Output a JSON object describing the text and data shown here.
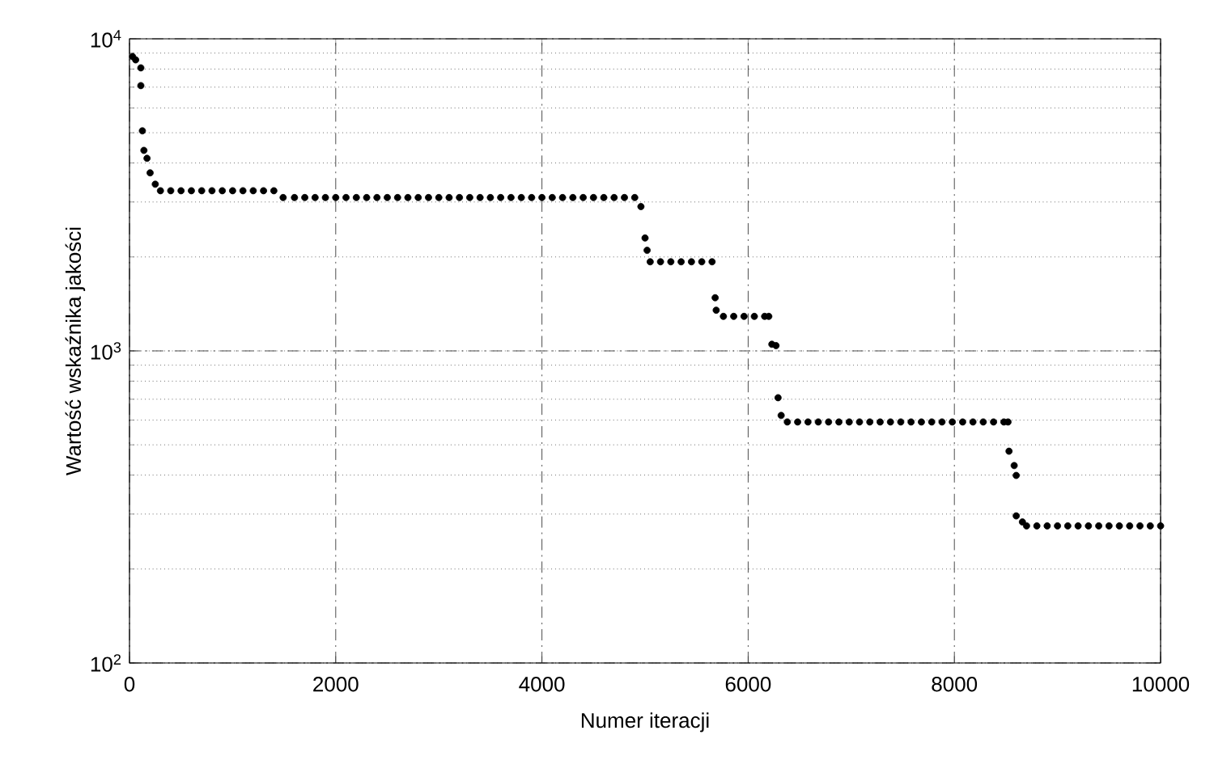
{
  "chart_data": {
    "type": "scatter",
    "xlabel": "Numer iteracji",
    "ylabel": "Wartość wskaźnika jakości",
    "log": "y",
    "grid": true,
    "marker": "circle",
    "color": "#000000",
    "xlim": [
      0,
      10000
    ],
    "ylim": [
      100,
      10000
    ],
    "xticks": [
      0,
      2000,
      4000,
      6000,
      8000,
      10000
    ],
    "yticks": [
      {
        "value": 100,
        "label": "10$^{2}$"
      },
      {
        "value": 1000,
        "label": "10$^{3}$"
      },
      {
        "value": 10000,
        "label": "10$^{4}$"
      }
    ],
    "x": [
      30,
      60,
      110,
      110,
      125,
      140,
      170,
      200,
      250,
      300,
      400,
      500,
      600,
      700,
      800,
      900,
      1000,
      1100,
      1200,
      1300,
      1400,
      1490,
      1600,
      1700,
      1800,
      1900,
      2000,
      2100,
      2200,
      2300,
      2400,
      2500,
      2600,
      2700,
      2800,
      2900,
      3000,
      3100,
      3200,
      3300,
      3400,
      3500,
      3600,
      3700,
      3800,
      3900,
      4000,
      4100,
      4200,
      4300,
      4400,
      4500,
      4600,
      4700,
      4800,
      4900,
      4960,
      5000,
      5020,
      5050,
      5150,
      5250,
      5350,
      5450,
      5550,
      5650,
      5680,
      5690,
      5760,
      5860,
      5960,
      6060,
      6160,
      6200,
      6230,
      6270,
      6290,
      6320,
      6380,
      6480,
      6580,
      6680,
      6780,
      6880,
      6980,
      7080,
      7180,
      7280,
      7380,
      7480,
      7580,
      7680,
      7780,
      7880,
      7980,
      8080,
      8180,
      8280,
      8380,
      8480,
      8520,
      8530,
      8580,
      8600,
      8600,
      8660,
      8700,
      8800,
      8900,
      9000,
      9100,
      9200,
      9300,
      9400,
      9500,
      9600,
      9700,
      9800,
      9900,
      10000
    ],
    "values": [
      8770,
      8560,
      8070,
      7080,
      5070,
      4390,
      4140,
      3720,
      3420,
      3260,
      3260,
      3260,
      3260,
      3260,
      3260,
      3260,
      3260,
      3260,
      3260,
      3260,
      3260,
      3100,
      3100,
      3100,
      3100,
      3100,
      3100,
      3100,
      3100,
      3100,
      3100,
      3100,
      3100,
      3100,
      3100,
      3100,
      3100,
      3100,
      3100,
      3100,
      3100,
      3100,
      3100,
      3100,
      3100,
      3100,
      3100,
      3100,
      3100,
      3100,
      3100,
      3100,
      3100,
      3100,
      3100,
      3100,
      2900,
      2300,
      2100,
      1930,
      1930,
      1930,
      1930,
      1930,
      1930,
      1930,
      1480,
      1350,
      1290,
      1290,
      1290,
      1290,
      1290,
      1290,
      1050,
      1040,
      708,
      621,
      592,
      592,
      592,
      592,
      592,
      592,
      592,
      592,
      592,
      592,
      592,
      592,
      592,
      592,
      592,
      592,
      592,
      592,
      592,
      592,
      592,
      592,
      592,
      477,
      429,
      399,
      296,
      283,
      275,
      275,
      275,
      275,
      275,
      275,
      275,
      275,
      275,
      275,
      275,
      275,
      275,
      275
    ]
  }
}
